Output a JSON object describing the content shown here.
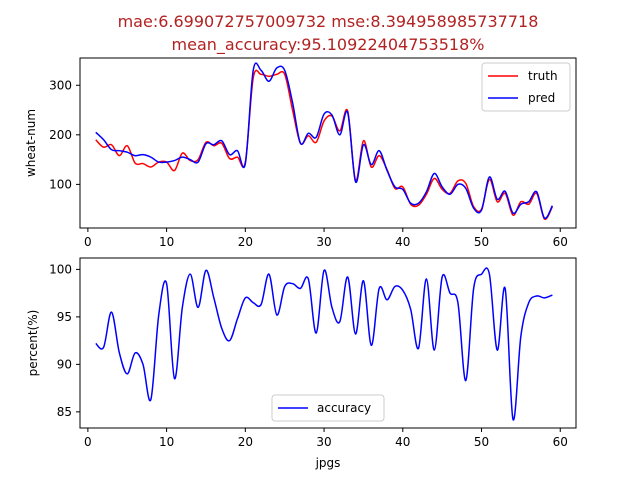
{
  "title_line1": "mae:6.699072757009732   mse:8.394958985737718",
  "title_line2": "mean_accuracy:95.10922404753518%",
  "chart_data": [
    {
      "type": "line",
      "title": "",
      "xlabel": "",
      "ylabel": "wheat-num",
      "xlim": [
        -1,
        62
      ],
      "ylim": [
        12,
        355
      ],
      "xticks": [
        0,
        10,
        20,
        30,
        40,
        50,
        60
      ],
      "yticks": [
        100,
        200,
        300
      ],
      "grid": false,
      "legend_position": "top-right",
      "x": [
        1,
        2,
        3,
        4,
        5,
        6,
        7,
        8,
        9,
        10,
        11,
        12,
        13,
        14,
        15,
        16,
        17,
        18,
        19,
        20,
        21,
        22,
        23,
        24,
        25,
        26,
        27,
        28,
        29,
        30,
        31,
        32,
        33,
        34,
        35,
        36,
        37,
        38,
        39,
        40,
        41,
        42,
        43,
        44,
        45,
        46,
        47,
        48,
        49,
        50,
        51,
        52,
        53,
        54,
        55,
        56,
        57,
        58,
        59
      ],
      "series": [
        {
          "name": "truth",
          "color": "#ff0000",
          "values": [
            190,
            175,
            180,
            158,
            178,
            143,
            142,
            135,
            145,
            145,
            128,
            163,
            148,
            150,
            185,
            178,
            183,
            152,
            155,
            145,
            315,
            322,
            318,
            322,
            322,
            250,
            183,
            198,
            185,
            228,
            238,
            208,
            248,
            108,
            188,
            135,
            158,
            130,
            92,
            95,
            60,
            58,
            80,
            112,
            90,
            82,
            107,
            102,
            55,
            50,
            110,
            65,
            82,
            38,
            65,
            60,
            82,
            30,
            55
          ]
        },
        {
          "name": "pred",
          "color": "#0000ff",
          "values": [
            205,
            190,
            170,
            168,
            165,
            158,
            160,
            155,
            145,
            145,
            148,
            155,
            150,
            145,
            182,
            180,
            188,
            160,
            168,
            142,
            330,
            330,
            308,
            335,
            330,
            265,
            183,
            203,
            195,
            242,
            240,
            200,
            245,
            105,
            180,
            140,
            168,
            128,
            95,
            90,
            62,
            62,
            85,
            122,
            95,
            80,
            100,
            92,
            52,
            48,
            115,
            70,
            86,
            42,
            60,
            65,
            85,
            32,
            57
          ]
        }
      ]
    },
    {
      "type": "line",
      "title": "",
      "xlabel": "jpgs",
      "ylabel": "percent(%)",
      "xlim": [
        -1,
        62
      ],
      "ylim": [
        83.3,
        101.2
      ],
      "xticks": [
        0,
        10,
        20,
        30,
        40,
        50,
        60
      ],
      "yticks": [
        85,
        90,
        95,
        100
      ],
      "grid": false,
      "legend_position": "lower-center",
      "x": [
        1,
        2,
        3,
        4,
        5,
        6,
        7,
        8,
        9,
        10,
        11,
        12,
        13,
        14,
        15,
        16,
        17,
        18,
        19,
        20,
        21,
        22,
        23,
        24,
        25,
        26,
        27,
        28,
        29,
        30,
        31,
        32,
        33,
        34,
        35,
        36,
        37,
        38,
        39,
        40,
        41,
        42,
        43,
        44,
        45,
        46,
        47,
        48,
        49,
        50,
        51,
        52,
        53,
        54,
        55,
        56,
        57,
        58,
        59
      ],
      "series": [
        {
          "name": "accuracy",
          "color": "#0000ff",
          "values": [
            92.2,
            91.8,
            95.5,
            91.2,
            89.0,
            91.2,
            90.0,
            86.3,
            95.2,
            98.5,
            88.5,
            96.0,
            99.5,
            96.0,
            99.9,
            97.0,
            93.8,
            92.5,
            94.8,
            97.0,
            96.5,
            96.3,
            99.5,
            95.2,
            98.2,
            98.5,
            98.0,
            99.0,
            93.3,
            99.9,
            96.0,
            94.5,
            99.2,
            93.2,
            98.8,
            92.0,
            98.0,
            96.8,
            98.2,
            97.8,
            95.8,
            91.7,
            99.0,
            91.5,
            99.2,
            97.5,
            96.5,
            88.3,
            98.0,
            99.5,
            99.5,
            91.5,
            98.0,
            84.2,
            93.0,
            96.5,
            97.2,
            97.0,
            97.3
          ]
        }
      ]
    }
  ]
}
